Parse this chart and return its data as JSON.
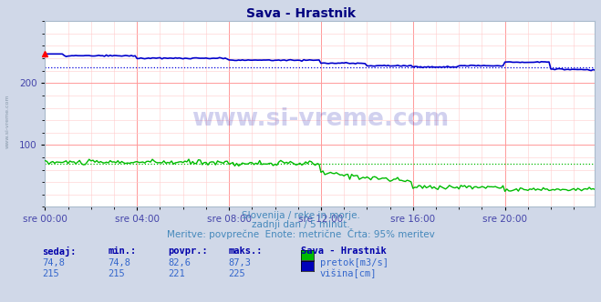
{
  "title": "Sava - Hrastnik",
  "title_color": "#000080",
  "bg_color": "#d0d8e8",
  "plot_bg_color": "#ffffff",
  "grid_color_major": "#ff9999",
  "grid_color_minor": "#ffcccc",
  "xlabel_ticks": [
    "sre 00:00",
    "sre 04:00",
    "sre 08:00",
    "sre 12:00",
    "sre 16:00",
    "sre 20:00"
  ],
  "xtick_positions": [
    0,
    48,
    96,
    144,
    192,
    240
  ],
  "total_points": 288,
  "ylim": [
    0,
    300
  ],
  "yticks": [
    100,
    200
  ],
  "tick_color": "#4444aa",
  "pretok_color": "#00bb00",
  "visina_color": "#0000cc",
  "pretok_avg_color": "#00bb00",
  "visina_avg_color": "#0000dd",
  "watermark_text": "www.si-vreme.com",
  "watermark_color": "#0000aa",
  "watermark_alpha": 0.18,
  "subtitle1": "Slovenija / reke in morje.",
  "subtitle2": "zadnji dan / 5 minut.",
  "subtitle3": "Meritve: povprečne  Enote: metrične  Črta: 95% meritev",
  "subtitle_color": "#4488bb",
  "table_header": [
    "sedaj:",
    "min.:",
    "povpr.:",
    "maks.:",
    "Sava - Hrastnik"
  ],
  "table_row1": [
    "74,8",
    "74,8",
    "82,6",
    "87,3",
    "pretok[m3/s]"
  ],
  "table_row2": [
    "215",
    "215",
    "221",
    "225",
    "višina[cm]"
  ],
  "table_color": "#3366cc",
  "table_header_color": "#0000aa",
  "legend_pretok_color": "#00bb00",
  "legend_visina_color": "#0000bb",
  "side_text": "www.si-vreme.com",
  "side_text_color": "#8899aa",
  "pretok_avg": 70.0,
  "visina_avg": 225.0
}
